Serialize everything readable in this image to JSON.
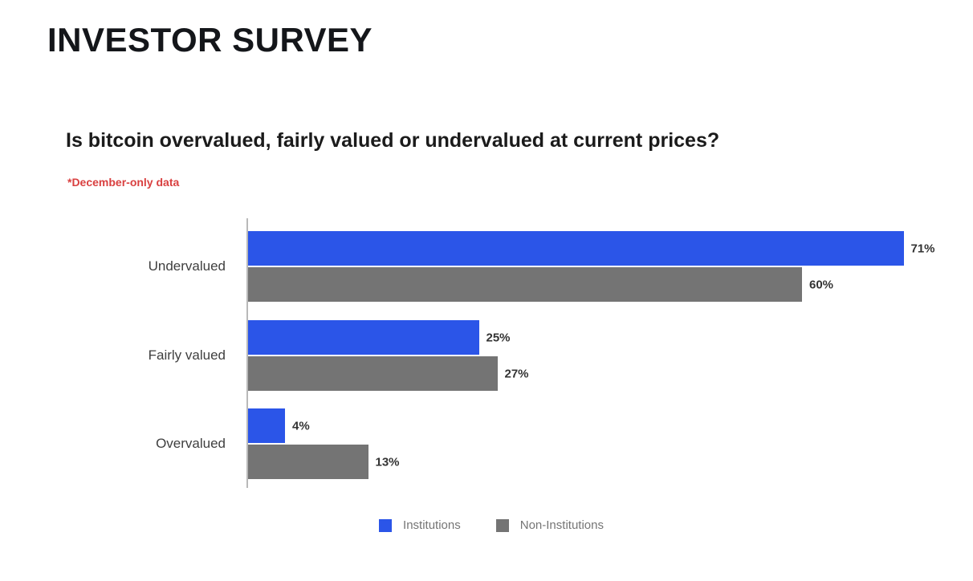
{
  "header": {
    "title": "INVESTOR SURVEY"
  },
  "chart": {
    "question": "Is bitcoin overvalued, fairly valued or undervalued at current prices?",
    "note": "*December-only data"
  },
  "chart_data": {
    "type": "bar",
    "orientation": "horizontal",
    "title": "Is bitcoin overvalued, fairly valued or undervalued at current prices?",
    "subtitle": "*December-only data",
    "categories": [
      "Undervalued",
      "Fairly valued",
      "Overvalued"
    ],
    "series": [
      {
        "name": "Institutions",
        "color": "#2b55e8",
        "values": [
          71,
          25,
          4
        ]
      },
      {
        "name": "Non-Institutions",
        "color": "#747474",
        "values": [
          60,
          27,
          13
        ]
      }
    ],
    "value_suffix": "%",
    "xlim": [
      0,
      77
    ],
    "grid": false,
    "data_labels": true,
    "legend_position": "bottom"
  },
  "colors": {
    "accent_blue": "#2b55e8",
    "bar_gray": "#747474",
    "note_red": "#d94040",
    "axis_gray": "#b9b9b9"
  }
}
